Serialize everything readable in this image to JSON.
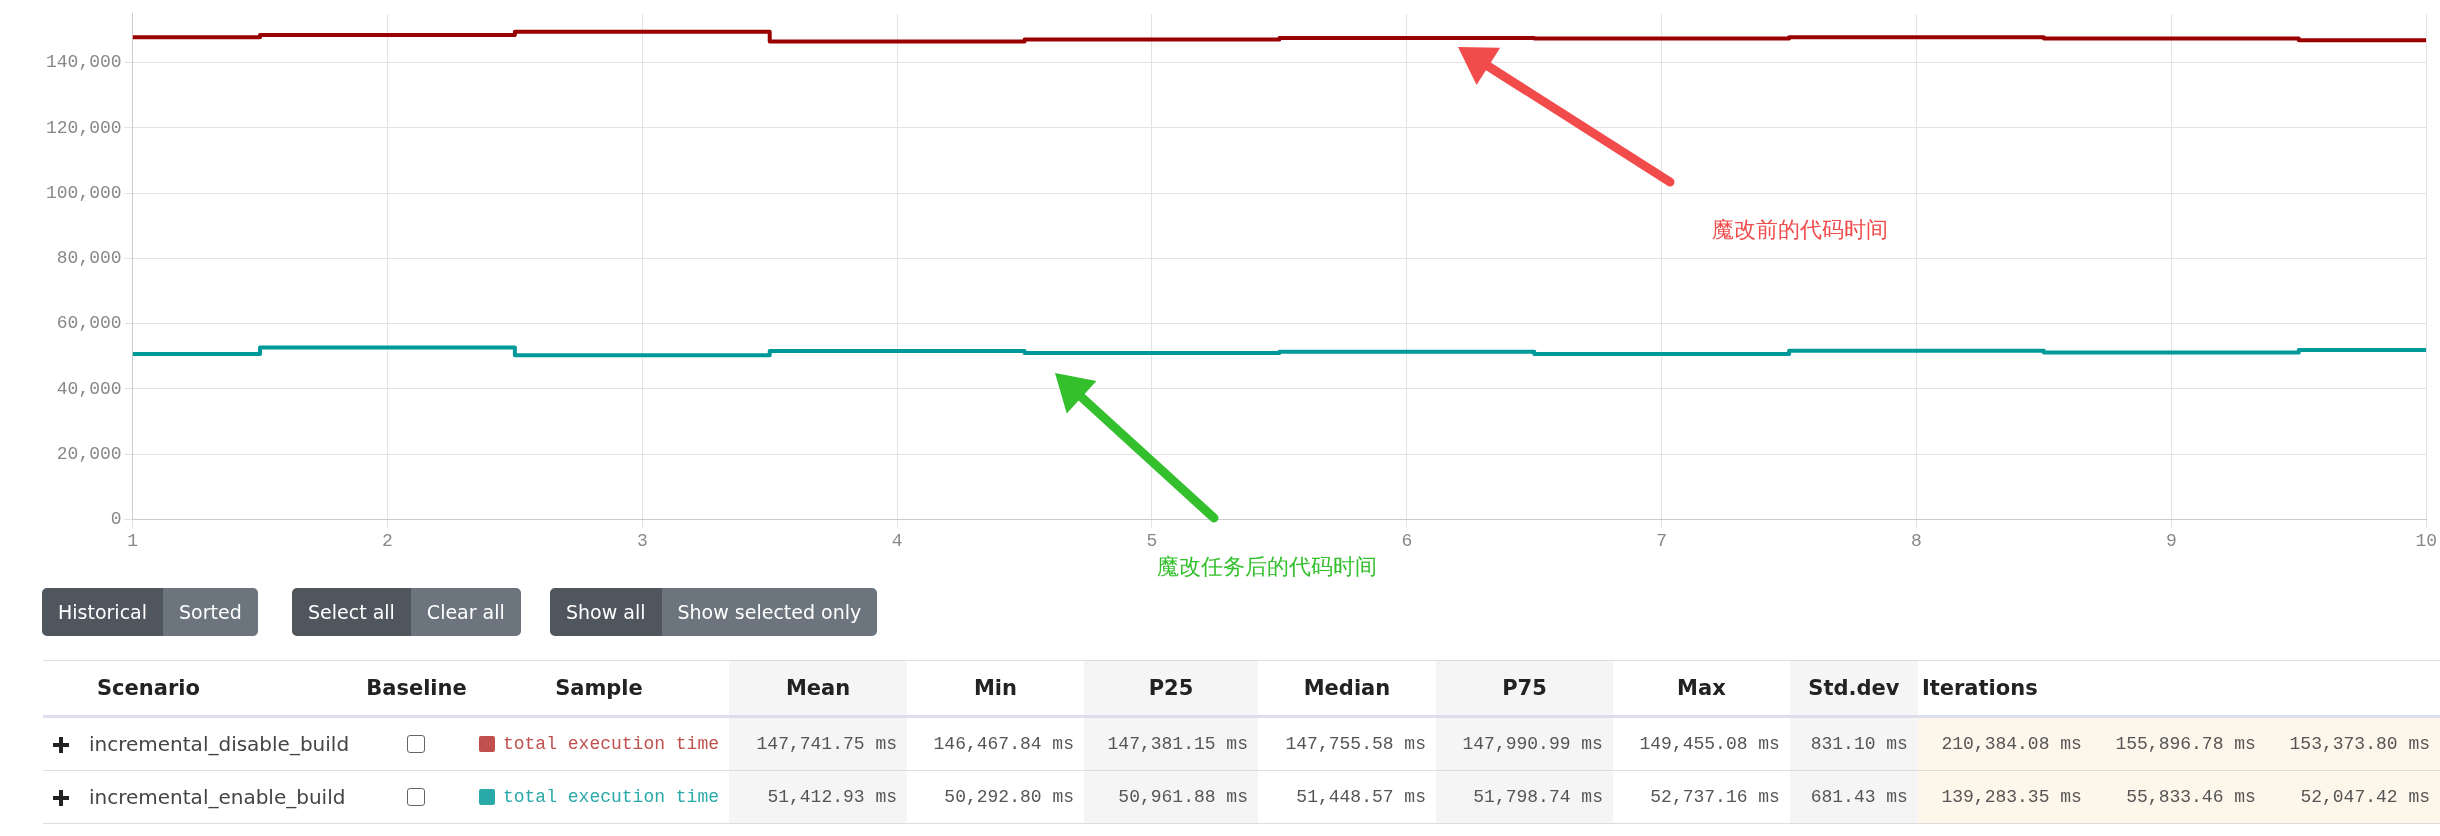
{
  "chart_data": [
    {
      "type": "step",
      "x": [
        1,
        2,
        3,
        4,
        5,
        6,
        7,
        8,
        9,
        10
      ],
      "series": [
        {
          "color": "#990000",
          "values": [
            147800,
            148500,
            149500,
            146500,
            147100,
            147600,
            147400,
            147800,
            147400,
            146900
          ]
        },
        {
          "color": "#009999",
          "values": [
            50700,
            52700,
            50300,
            51600,
            51000,
            51400,
            50700,
            51700,
            51200,
            51900
          ]
        }
      ],
      "xlim": [
        1,
        10
      ],
      "xticks": [
        1,
        2,
        3,
        4,
        5,
        6,
        7,
        8,
        9,
        10
      ],
      "ylim": [
        0,
        155000
      ],
      "yticks": [
        0,
        {
          "value": 20000,
          "label": "20,000"
        },
        {
          "value": 40000,
          "label": "40,000"
        },
        {
          "value": 60000,
          "label": "60,000"
        },
        {
          "value": 80000,
          "label": "80,000"
        },
        {
          "value": 100000,
          "label": "100,000"
        },
        {
          "value": 120000,
          "label": "120,000"
        },
        {
          "value": 140000,
          "label": "140,000"
        }
      ],
      "grid": true,
      "legend": false,
      "annotations": [
        "魔改前的代码时间",
        "魔改任务后的代码时间"
      ]
    },
    {
      "type": "other",
      "annotations": [
        "Historical",
        "Sorted",
        "Select all",
        "Clear all",
        "Show all",
        "Show selected only"
      ],
      "categories": [
        "Scenario",
        "Baseline",
        "Sample",
        "Mean",
        "Min",
        "P25",
        "Median",
        "P75",
        "Max",
        "Std.dev",
        "Iterations"
      ],
      "y_categories": [
        "incremental_disable_build",
        "incremental_enable_build"
      ],
      "colors": [
        "#c0504d",
        "#2aa9a9"
      ],
      "cell_labels": [
        [
          "total execution time",
          "147,741.75 ms",
          "146,467.84 ms",
          "147,381.15 ms",
          "147,755.58 ms",
          "147,990.99 ms",
          "149,455.08 ms",
          "831.10 ms",
          "210,384.08 ms",
          "155,896.78 ms",
          "153,373.80 ms"
        ],
        [
          "total execution time",
          "51,412.93 ms",
          "50,292.80 ms",
          "50,961.88 ms",
          "51,448.57 ms",
          "51,798.74 ms",
          "52,737.16 ms",
          "681.43 ms",
          "139,283.35 ms",
          "55,833.46 ms",
          "52,047.42 ms"
        ]
      ]
    }
  ]
}
